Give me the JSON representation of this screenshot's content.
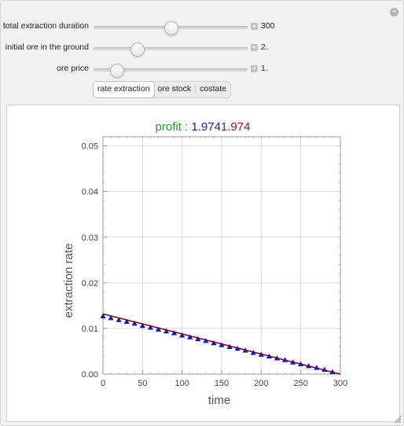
{
  "controls": [
    {
      "label": "total extraction duration",
      "value": "300",
      "fraction": 0.5
    },
    {
      "label": "initial ore in the ground",
      "value": "2.",
      "fraction": 0.28
    },
    {
      "label": "ore price",
      "value": "1.",
      "fraction": 0.15
    }
  ],
  "tabs": [
    {
      "label": "rate extraction",
      "active": true
    },
    {
      "label": "ore stock",
      "active": false
    },
    {
      "label": "costate",
      "active": false
    }
  ],
  "plus_icon": "+",
  "title": {
    "prefix": "profit : ",
    "value_blue": "1.974",
    "value_red": "1.974",
    "color_prefix": "#22a022",
    "color_blue": "#1a1aa6",
    "color_red": "#a0141e"
  },
  "chart_data": {
    "type": "line",
    "xlabel": "time",
    "ylabel": "extraction rate",
    "xlim": [
      0,
      300
    ],
    "ylim": [
      0,
      0.052
    ],
    "x_ticks": [
      "0",
      "50",
      "100",
      "150",
      "200",
      "250",
      "300"
    ],
    "y_ticks": [
      "0.00",
      "0.01",
      "0.02",
      "0.03",
      "0.04",
      "0.05"
    ],
    "grid": true,
    "series": [
      {
        "style": "line",
        "color": "#8b0000",
        "x": [
          0,
          300
        ],
        "y": [
          0.0132,
          0
        ]
      },
      {
        "style": "triangle-markers",
        "color": "#1a1aa6",
        "x": [
          0,
          10,
          20,
          30,
          40,
          50,
          60,
          70,
          80,
          90,
          100,
          110,
          120,
          130,
          140,
          150,
          160,
          170,
          180,
          190,
          200,
          210,
          220,
          230,
          240,
          250,
          260,
          270,
          280,
          290
        ],
        "y": [
          0.0127,
          0.0123,
          0.0119,
          0.0115,
          0.0111,
          0.0106,
          0.0102,
          0.0098,
          0.0094,
          0.009,
          0.0085,
          0.0081,
          0.0077,
          0.0073,
          0.0068,
          0.0064,
          0.006,
          0.0056,
          0.0052,
          0.0047,
          0.0043,
          0.0039,
          0.0035,
          0.0031,
          0.0026,
          0.0022,
          0.0018,
          0.0014,
          0.001,
          0.0005
        ]
      }
    ]
  }
}
